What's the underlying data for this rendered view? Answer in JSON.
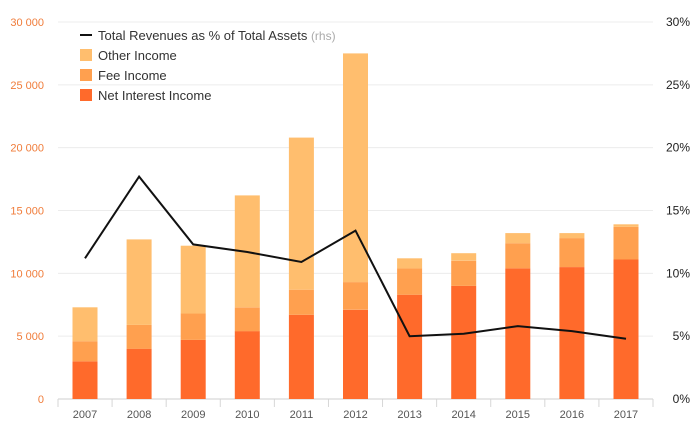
{
  "chart_data": {
    "type": "bar",
    "stacked": true,
    "categories": [
      "2007",
      "2008",
      "2009",
      "2010",
      "2011",
      "2012",
      "2013",
      "2014",
      "2015",
      "2016",
      "2017"
    ],
    "series": [
      {
        "name": "Net Interest Income",
        "color": "#ff6a2b",
        "values": [
          3000,
          4000,
          4700,
          5400,
          6700,
          7100,
          8300,
          9000,
          10400,
          10500,
          11100
        ]
      },
      {
        "name": "Fee Income",
        "color": "#ffa04f",
        "values": [
          1600,
          1900,
          2100,
          1900,
          2000,
          2200,
          2100,
          2000,
          2000,
          2300,
          2600
        ]
      },
      {
        "name": "Other Income",
        "color": "#ffbe6e",
        "values": [
          2700,
          6800,
          5400,
          8900,
          12100,
          18200,
          800,
          600,
          800,
          400,
          200
        ]
      }
    ],
    "line": {
      "name": "Total Revenues as % of Total Assets",
      "suffix": "(rhs)",
      "color": "#111111",
      "axis": "right",
      "values": [
        11.2,
        17.7,
        12.3,
        11.7,
        10.9,
        13.4,
        5.0,
        5.2,
        5.8,
        5.4,
        4.8
      ]
    },
    "y_left": {
      "min": 0,
      "max": 30000,
      "ticks": [
        0,
        5000,
        10000,
        15000,
        20000,
        25000,
        30000
      ],
      "tick_labels": [
        "0",
        "5 000",
        "10 000",
        "15 000",
        "20 000",
        "25 000",
        "30 000"
      ]
    },
    "y_right": {
      "min": 0,
      "max": 30,
      "ticks": [
        0,
        5,
        10,
        15,
        20,
        25,
        30
      ],
      "tick_labels": [
        "0%",
        "5%",
        "10%",
        "15%",
        "20%",
        "25%",
        "30%"
      ]
    },
    "grid": true,
    "legend": "top-left",
    "title": "",
    "xlabel": "",
    "ylabel": ""
  }
}
